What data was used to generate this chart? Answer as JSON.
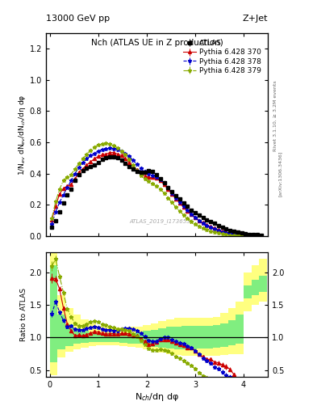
{
  "title_top": "13000 GeV pp",
  "title_right": "Z+Jet",
  "panel_title": "Nch (ATLAS UE in Z production)",
  "ylabel_main": "1/N$_{ev}$ dN$_{ev}$/dN$_{ch}$/dη dφ",
  "ylabel_ratio": "Ratio to ATLAS",
  "xlabel": "N$_{ch}$/dη dφ",
  "right_label": "Rivet 3.1.10, ≥ 3.2M events",
  "arxiv_label": "[arXiv:1306.3436]",
  "watermark": "ATLAS_2019_I1736531",
  "atlas_x": [
    0.04,
    0.12,
    0.2,
    0.28,
    0.36,
    0.44,
    0.52,
    0.6,
    0.68,
    0.76,
    0.84,
    0.92,
    1.0,
    1.08,
    1.16,
    1.24,
    1.32,
    1.4,
    1.48,
    1.56,
    1.64,
    1.72,
    1.8,
    1.88,
    1.96,
    2.04,
    2.12,
    2.2,
    2.28,
    2.36,
    2.44,
    2.52,
    2.6,
    2.68,
    2.76,
    2.84,
    2.92,
    3.0,
    3.08,
    3.16,
    3.24,
    3.32,
    3.4,
    3.48,
    3.56,
    3.64,
    3.72,
    3.8,
    3.88,
    3.96,
    4.04,
    4.12,
    4.2,
    4.28,
    4.36
  ],
  "atlas_y": [
    0.055,
    0.1,
    0.155,
    0.21,
    0.265,
    0.3,
    0.355,
    0.395,
    0.42,
    0.435,
    0.445,
    0.455,
    0.47,
    0.49,
    0.5,
    0.505,
    0.505,
    0.5,
    0.485,
    0.465,
    0.445,
    0.43,
    0.415,
    0.41,
    0.41,
    0.42,
    0.415,
    0.395,
    0.365,
    0.34,
    0.31,
    0.285,
    0.26,
    0.235,
    0.21,
    0.19,
    0.165,
    0.15,
    0.135,
    0.12,
    0.105,
    0.09,
    0.08,
    0.065,
    0.055,
    0.045,
    0.035,
    0.03,
    0.025,
    0.02,
    0.015,
    0.012,
    0.009,
    0.007,
    0.005
  ],
  "atlas_yerr": [
    0.003,
    0.004,
    0.005,
    0.005,
    0.006,
    0.006,
    0.007,
    0.007,
    0.007,
    0.007,
    0.007,
    0.007,
    0.007,
    0.007,
    0.007,
    0.007,
    0.007,
    0.007,
    0.007,
    0.007,
    0.007,
    0.007,
    0.006,
    0.006,
    0.006,
    0.006,
    0.006,
    0.006,
    0.006,
    0.005,
    0.005,
    0.005,
    0.005,
    0.005,
    0.004,
    0.004,
    0.004,
    0.004,
    0.003,
    0.003,
    0.003,
    0.003,
    0.003,
    0.002,
    0.002,
    0.002,
    0.002,
    0.002,
    0.002,
    0.001,
    0.001,
    0.001,
    0.001,
    0.001,
    0.001
  ],
  "py370_x": [
    0.04,
    0.12,
    0.2,
    0.28,
    0.36,
    0.44,
    0.52,
    0.6,
    0.68,
    0.76,
    0.84,
    0.92,
    1.0,
    1.08,
    1.16,
    1.24,
    1.32,
    1.4,
    1.48,
    1.56,
    1.64,
    1.72,
    1.8,
    1.88,
    1.96,
    2.04,
    2.12,
    2.2,
    2.28,
    2.36,
    2.44,
    2.52,
    2.6,
    2.68,
    2.76,
    2.84,
    2.92,
    3.0,
    3.08,
    3.16,
    3.24,
    3.32,
    3.4,
    3.48,
    3.56,
    3.64,
    3.72,
    3.8,
    3.88,
    3.96,
    4.04,
    4.12,
    4.2,
    4.28,
    4.36
  ],
  "py370_y": [
    0.105,
    0.19,
    0.27,
    0.305,
    0.32,
    0.33,
    0.365,
    0.41,
    0.43,
    0.455,
    0.475,
    0.495,
    0.51,
    0.52,
    0.525,
    0.535,
    0.535,
    0.525,
    0.515,
    0.495,
    0.47,
    0.445,
    0.425,
    0.4,
    0.385,
    0.375,
    0.375,
    0.37,
    0.355,
    0.33,
    0.3,
    0.27,
    0.24,
    0.21,
    0.185,
    0.16,
    0.14,
    0.12,
    0.1,
    0.085,
    0.07,
    0.06,
    0.05,
    0.04,
    0.032,
    0.025,
    0.018,
    0.013,
    0.009,
    0.006,
    0.004,
    0.003,
    0.002,
    0.001,
    0.001
  ],
  "py370_yerr": [
    0.004,
    0.005,
    0.006,
    0.006,
    0.006,
    0.006,
    0.006,
    0.006,
    0.007,
    0.007,
    0.007,
    0.007,
    0.007,
    0.007,
    0.007,
    0.007,
    0.007,
    0.007,
    0.007,
    0.007,
    0.007,
    0.006,
    0.006,
    0.006,
    0.006,
    0.006,
    0.006,
    0.006,
    0.006,
    0.005,
    0.005,
    0.005,
    0.005,
    0.004,
    0.004,
    0.004,
    0.003,
    0.003,
    0.003,
    0.003,
    0.003,
    0.002,
    0.002,
    0.002,
    0.002,
    0.002,
    0.001,
    0.001,
    0.001,
    0.001,
    0.001,
    0.001,
    0.001,
    0.001,
    0.001
  ],
  "py378_x": [
    0.04,
    0.12,
    0.2,
    0.28,
    0.36,
    0.44,
    0.52,
    0.6,
    0.68,
    0.76,
    0.84,
    0.92,
    1.0,
    1.08,
    1.16,
    1.24,
    1.32,
    1.4,
    1.48,
    1.56,
    1.64,
    1.72,
    1.8,
    1.88,
    1.96,
    2.04,
    2.12,
    2.2,
    2.28,
    2.36,
    2.44,
    2.52,
    2.6,
    2.68,
    2.76,
    2.84,
    2.92,
    3.0,
    3.08,
    3.16,
    3.24,
    3.32,
    3.4,
    3.48,
    3.56,
    3.64,
    3.72,
    3.8,
    3.88,
    3.96,
    4.04,
    4.12,
    4.2,
    4.28,
    4.36
  ],
  "py378_y": [
    0.075,
    0.155,
    0.215,
    0.265,
    0.31,
    0.355,
    0.4,
    0.44,
    0.47,
    0.495,
    0.515,
    0.53,
    0.545,
    0.555,
    0.56,
    0.565,
    0.56,
    0.555,
    0.545,
    0.53,
    0.51,
    0.485,
    0.46,
    0.435,
    0.415,
    0.4,
    0.39,
    0.375,
    0.36,
    0.34,
    0.31,
    0.275,
    0.245,
    0.215,
    0.19,
    0.165,
    0.14,
    0.12,
    0.1,
    0.082,
    0.068,
    0.055,
    0.044,
    0.034,
    0.026,
    0.019,
    0.014,
    0.01,
    0.007,
    0.005,
    0.003,
    0.002,
    0.001,
    0.001,
    0.0
  ],
  "py378_yerr": [
    0.003,
    0.004,
    0.005,
    0.005,
    0.006,
    0.006,
    0.006,
    0.006,
    0.007,
    0.007,
    0.007,
    0.007,
    0.007,
    0.007,
    0.007,
    0.007,
    0.007,
    0.007,
    0.007,
    0.007,
    0.007,
    0.006,
    0.006,
    0.006,
    0.006,
    0.006,
    0.006,
    0.006,
    0.005,
    0.005,
    0.005,
    0.005,
    0.005,
    0.004,
    0.004,
    0.004,
    0.004,
    0.003,
    0.003,
    0.003,
    0.003,
    0.002,
    0.002,
    0.002,
    0.002,
    0.002,
    0.001,
    0.001,
    0.001,
    0.001,
    0.001,
    0.001,
    0.001,
    0.001,
    0.001
  ],
  "py379_x": [
    0.04,
    0.12,
    0.2,
    0.28,
    0.36,
    0.44,
    0.52,
    0.6,
    0.68,
    0.76,
    0.84,
    0.92,
    1.0,
    1.08,
    1.16,
    1.24,
    1.32,
    1.4,
    1.48,
    1.56,
    1.64,
    1.72,
    1.8,
    1.88,
    1.96,
    2.04,
    2.12,
    2.2,
    2.28,
    2.36,
    2.44,
    2.52,
    2.6,
    2.68,
    2.76,
    2.84,
    2.92,
    3.0,
    3.08,
    3.16,
    3.24,
    3.32,
    3.4,
    3.48,
    3.56,
    3.64,
    3.72,
    3.8,
    3.88,
    3.96,
    4.04,
    4.12,
    4.2,
    4.28,
    4.36
  ],
  "py379_y": [
    0.115,
    0.22,
    0.3,
    0.355,
    0.38,
    0.395,
    0.43,
    0.465,
    0.495,
    0.525,
    0.55,
    0.57,
    0.585,
    0.59,
    0.595,
    0.59,
    0.58,
    0.565,
    0.545,
    0.52,
    0.49,
    0.455,
    0.42,
    0.39,
    0.365,
    0.35,
    0.335,
    0.32,
    0.3,
    0.275,
    0.245,
    0.215,
    0.185,
    0.16,
    0.135,
    0.115,
    0.095,
    0.078,
    0.063,
    0.05,
    0.04,
    0.031,
    0.024,
    0.018,
    0.013,
    0.009,
    0.006,
    0.004,
    0.003,
    0.002,
    0.001,
    0.001,
    0.0,
    0.0,
    0.0
  ],
  "py379_yerr": [
    0.004,
    0.005,
    0.006,
    0.006,
    0.006,
    0.006,
    0.007,
    0.007,
    0.007,
    0.007,
    0.007,
    0.007,
    0.007,
    0.007,
    0.007,
    0.007,
    0.007,
    0.007,
    0.007,
    0.007,
    0.007,
    0.006,
    0.006,
    0.006,
    0.006,
    0.006,
    0.006,
    0.005,
    0.005,
    0.005,
    0.005,
    0.005,
    0.004,
    0.004,
    0.004,
    0.004,
    0.003,
    0.003,
    0.003,
    0.003,
    0.002,
    0.002,
    0.002,
    0.002,
    0.001,
    0.001,
    0.001,
    0.001,
    0.001,
    0.001,
    0.001,
    0.001,
    0.001,
    0.001,
    0.001
  ],
  "color_atlas": "#000000",
  "color_py370": "#cc0000",
  "color_py378": "#0000cc",
  "color_py379": "#88aa00",
  "color_yellow_band": "#ffff80",
  "color_green_band": "#80ee80",
  "main_ylim": [
    0.0,
    1.3
  ],
  "ratio_ylim": [
    0.4,
    2.3
  ],
  "ratio_yticks": [
    0.5,
    1.0,
    1.5,
    2.0
  ],
  "xlim": [
    -0.08,
    4.5
  ],
  "main_yticks": [
    0.0,
    0.2,
    0.4,
    0.6,
    0.8,
    1.0,
    1.2
  ],
  "band_x_edges": [
    0.0,
    0.16,
    0.32,
    0.48,
    0.64,
    0.8,
    0.96,
    1.12,
    1.28,
    1.44,
    1.6,
    1.76,
    1.92,
    2.08,
    2.24,
    2.4,
    2.56,
    2.72,
    2.88,
    3.04,
    3.2,
    3.36,
    3.52,
    3.68,
    3.84,
    4.0,
    4.16,
    4.32,
    4.48
  ],
  "band_yellow_lo": [
    0.42,
    0.7,
    0.78,
    0.82,
    0.85,
    0.87,
    0.88,
    0.88,
    0.88,
    0.87,
    0.86,
    0.84,
    0.82,
    0.79,
    0.77,
    0.75,
    0.73,
    0.72,
    0.72,
    0.72,
    0.72,
    0.72,
    0.73,
    0.74,
    0.75,
    1.4,
    1.5,
    1.55,
    1.6
  ],
  "band_yellow_hi": [
    2.8,
    1.65,
    1.45,
    1.35,
    1.28,
    1.22,
    1.18,
    1.16,
    1.15,
    1.15,
    1.16,
    1.17,
    1.19,
    1.22,
    1.25,
    1.28,
    1.3,
    1.3,
    1.3,
    1.3,
    1.3,
    1.32,
    1.38,
    1.45,
    1.55,
    2.0,
    2.1,
    2.2,
    2.3
  ],
  "band_green_lo": [
    0.62,
    0.82,
    0.87,
    0.9,
    0.92,
    0.93,
    0.93,
    0.93,
    0.93,
    0.92,
    0.91,
    0.9,
    0.88,
    0.86,
    0.84,
    0.83,
    0.82,
    0.82,
    0.82,
    0.83,
    0.83,
    0.84,
    0.86,
    0.88,
    0.9,
    1.6,
    1.65,
    1.7,
    1.75
  ],
  "band_green_hi": [
    2.1,
    1.35,
    1.2,
    1.14,
    1.1,
    1.08,
    1.07,
    1.07,
    1.07,
    1.07,
    1.07,
    1.08,
    1.1,
    1.12,
    1.14,
    1.16,
    1.17,
    1.18,
    1.18,
    1.18,
    1.18,
    1.19,
    1.22,
    1.27,
    1.35,
    1.8,
    1.88,
    1.95,
    2.0
  ]
}
